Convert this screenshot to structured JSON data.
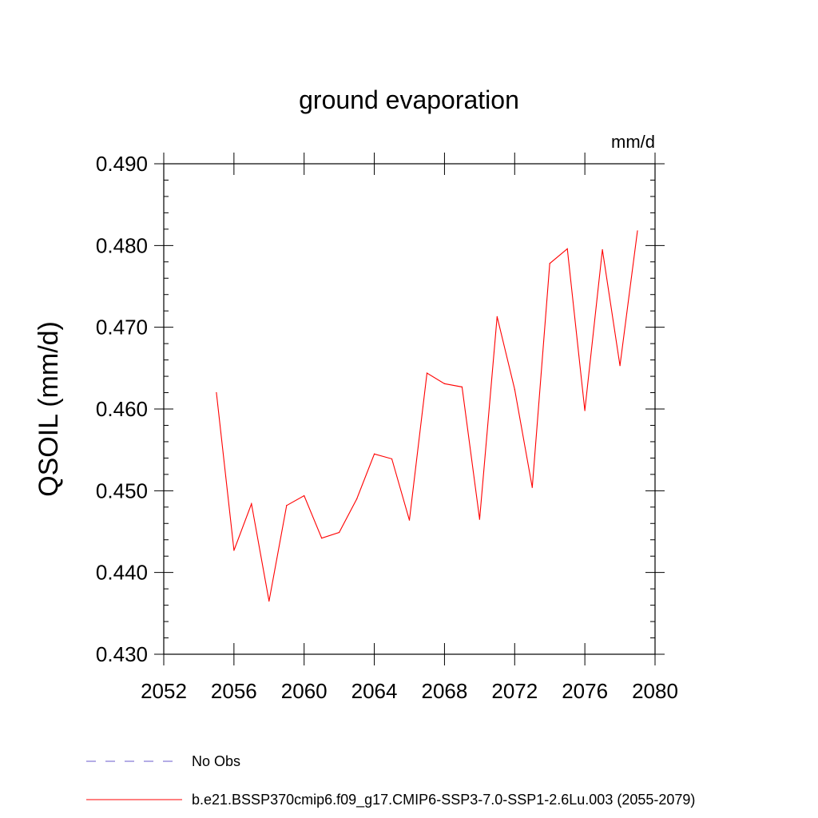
{
  "chart_data": {
    "type": "line",
    "title": "ground evaporation",
    "units": "mm/d",
    "ylabel": "QSOIL  (mm/d)",
    "xlabel": "",
    "xlim": [
      2052,
      2080
    ],
    "ylim": [
      0.43,
      0.49
    ],
    "xticks": [
      "2052",
      "2056",
      "2060",
      "2064",
      "2068",
      "2072",
      "2076",
      "2080"
    ],
    "yticks": [
      "0.430",
      "0.440",
      "0.450",
      "0.460",
      "0.470",
      "0.480",
      "0.490"
    ],
    "series": [
      {
        "name": "b.e21.BSSP370cmip6.f09_g17.CMIP6-SSP3-7.0-SSP1-2.6Lu.003 (2055-2079)",
        "color": "#ff0000",
        "x": [
          2055,
          2056,
          2057,
          2058,
          2059,
          2060,
          2061,
          2062,
          2063,
          2064,
          2065,
          2066,
          2067,
          2068,
          2069,
          2070,
          2071,
          2072,
          2073,
          2074,
          2075,
          2076,
          2077,
          2078,
          2079
        ],
        "y": [
          0.462,
          0.4427,
          0.4484,
          0.4365,
          0.4482,
          0.4494,
          0.4442,
          0.4449,
          0.449,
          0.4545,
          0.4539,
          0.4464,
          0.4644,
          0.4631,
          0.4627,
          0.4465,
          0.4713,
          0.4624,
          0.4504,
          0.4778,
          0.4796,
          0.4598,
          0.4795,
          0.4653,
          0.4818
        ]
      }
    ],
    "legend": [
      {
        "label": "No Obs",
        "style": "dashed",
        "color": "#6a5acd"
      },
      {
        "label": "b.e21.BSSP370cmip6.f09_g17.CMIP6-SSP3-7.0-SSP1-2.6Lu.003 (2055-2079)",
        "style": "solid",
        "color": "#ff0000"
      }
    ],
    "legend_position": "bottom",
    "grid": false
  }
}
